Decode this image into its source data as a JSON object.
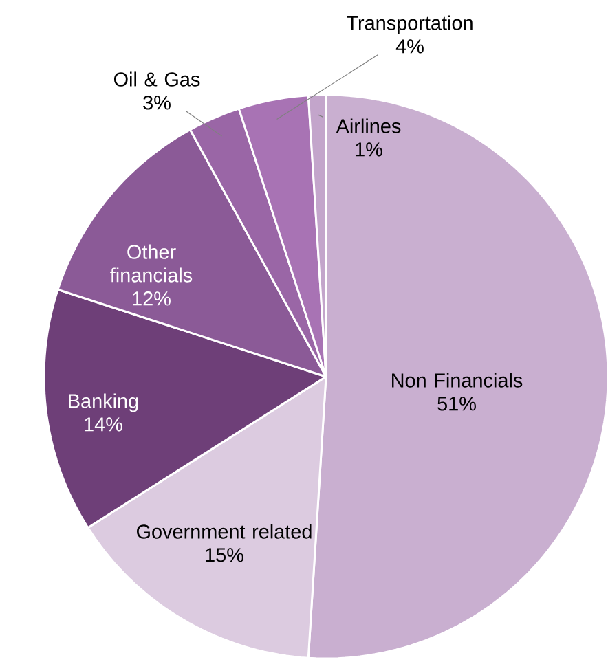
{
  "chart_data": {
    "type": "pie",
    "categories": [
      "Non Financials",
      "Government related",
      "Banking",
      "Other financials",
      "Oil & Gas",
      "Transportation",
      "Airlines"
    ],
    "values": [
      51,
      15,
      14,
      12,
      3,
      4,
      1
    ],
    "value_labels": [
      "51%",
      "15%",
      "14%",
      "12%",
      "3%",
      "4%",
      "1%"
    ],
    "colors": [
      "#c9afd0",
      "#dccbe0",
      "#6e3f78",
      "#8b5a97",
      "#9a66a6",
      "#a873b4",
      "#c3a5cb"
    ]
  }
}
